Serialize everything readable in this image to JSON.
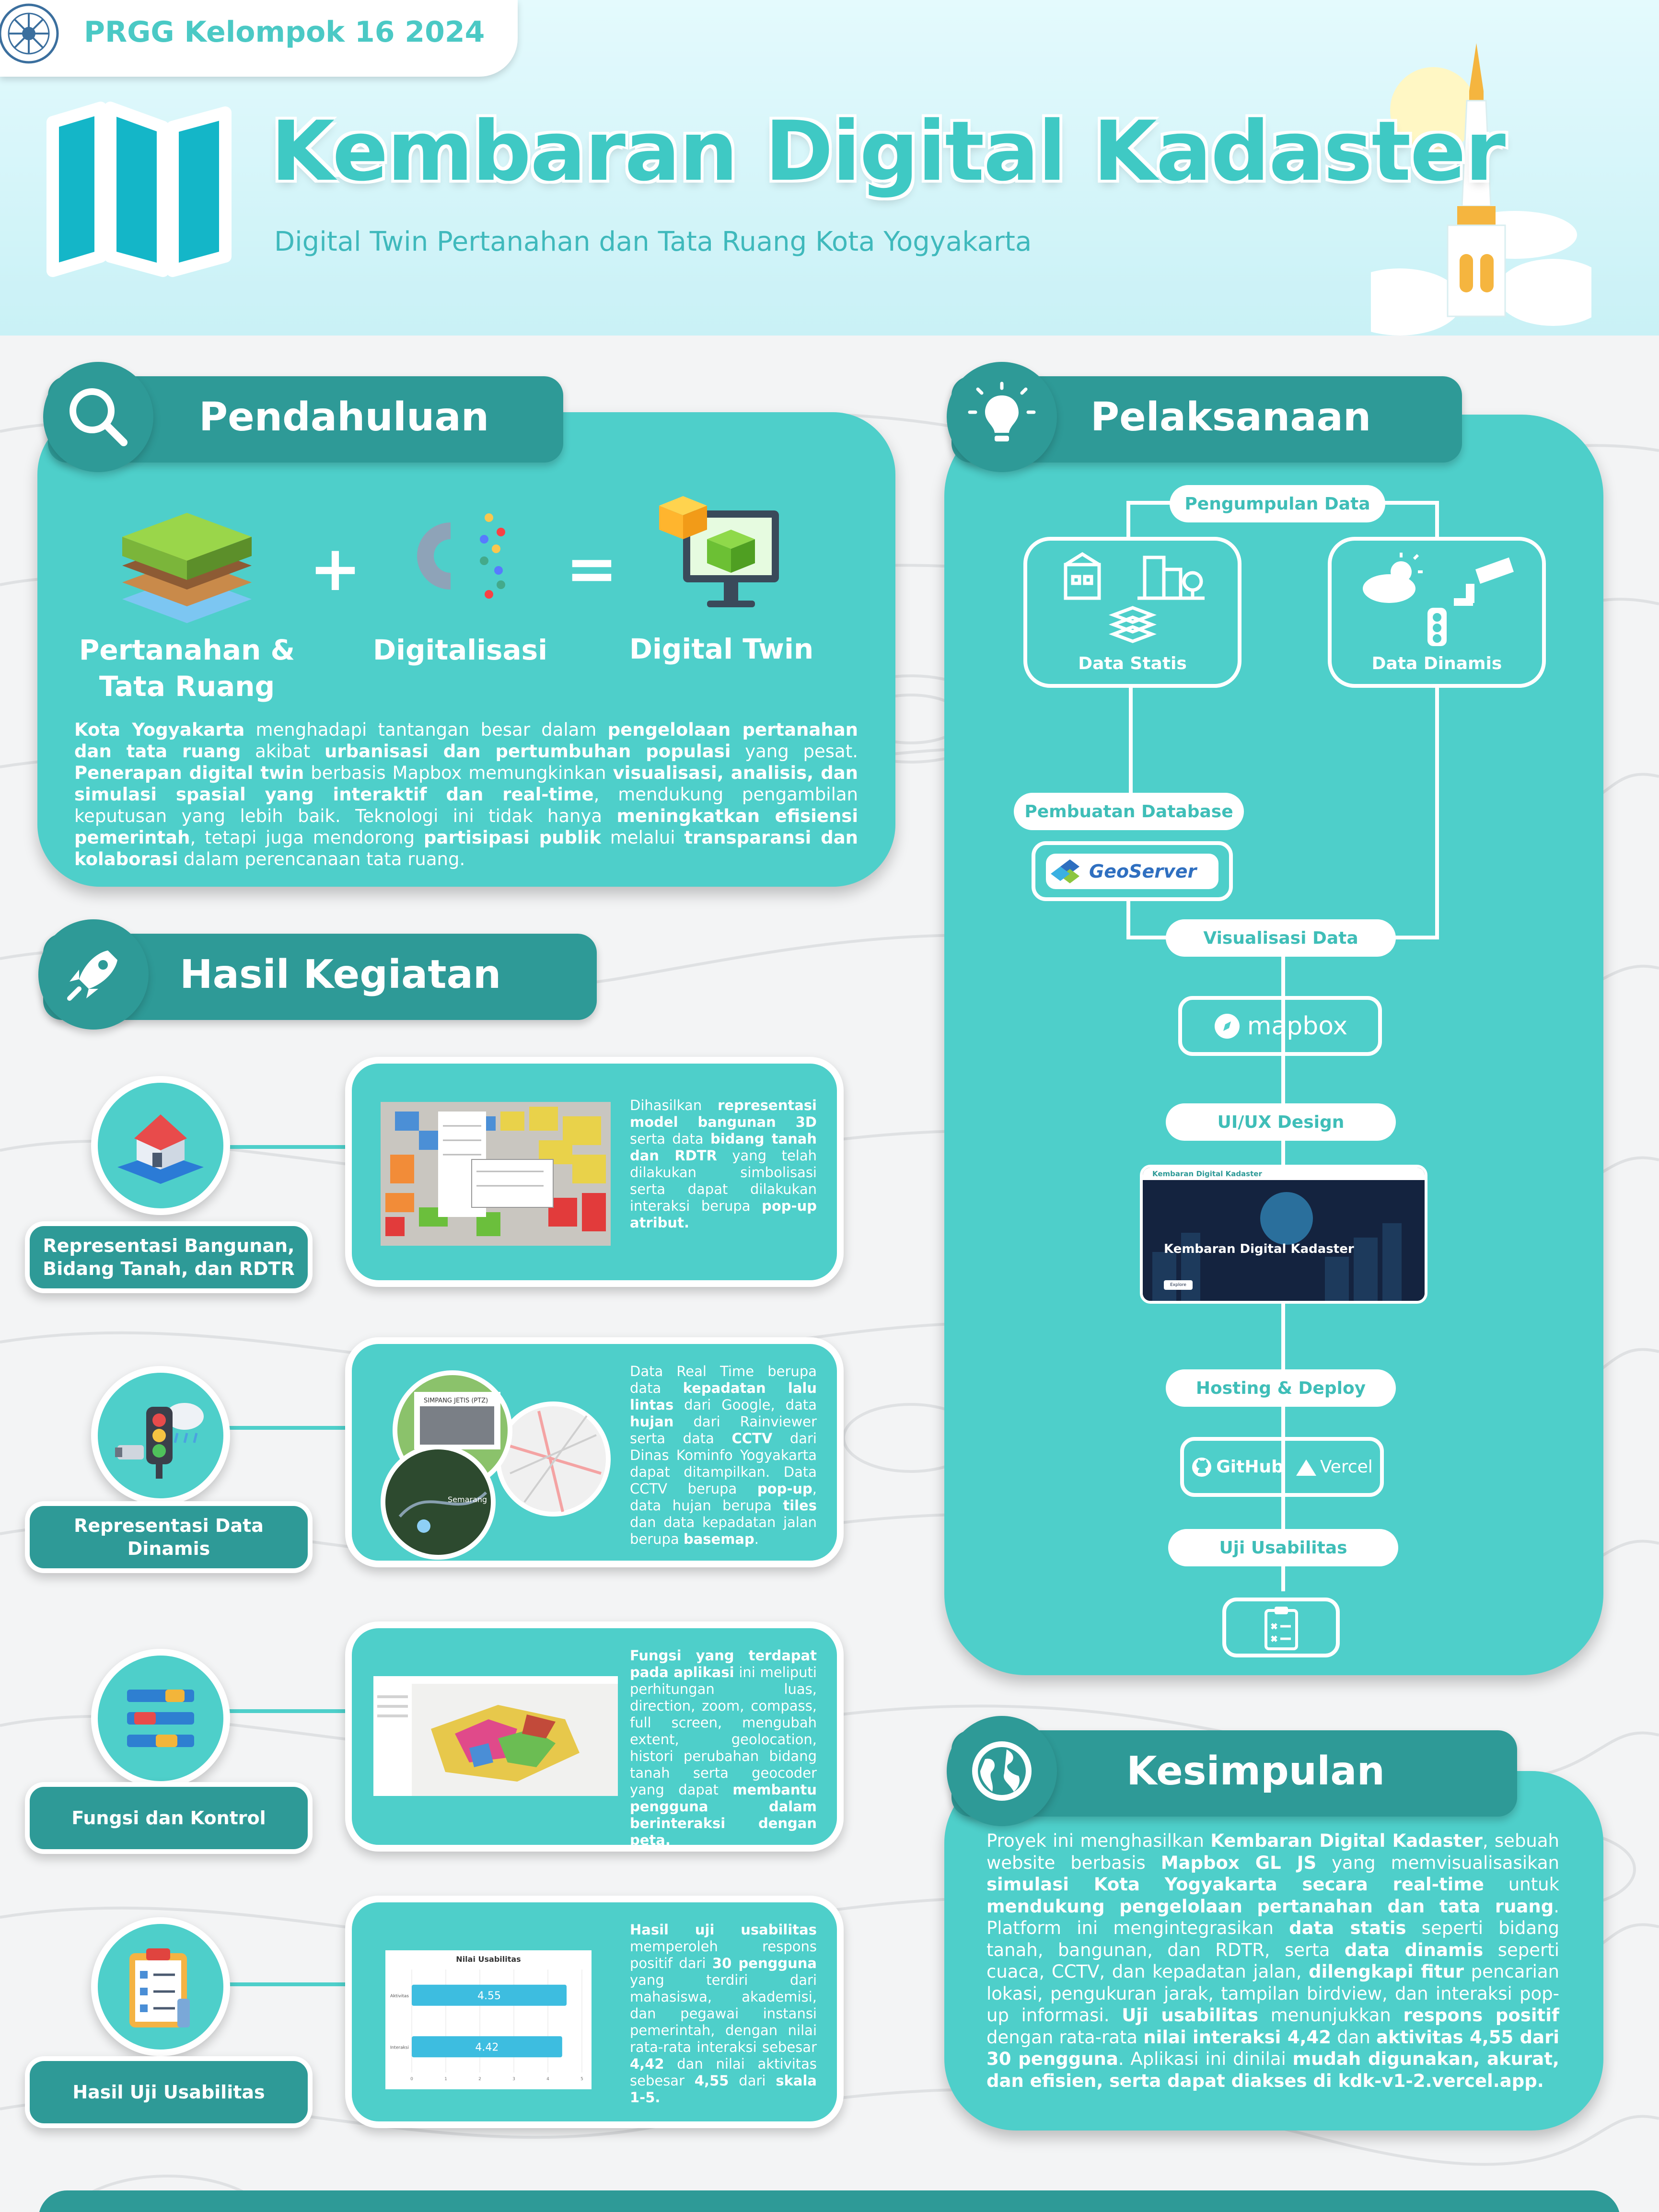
{
  "header": {
    "tag": "PRGG Kelompok 16 2024",
    "title": "Kembaran Digital Kadaster",
    "subtitle": "Digital Twin Pertanahan dan Tata Ruang Kota Yogyakarta"
  },
  "pendahuluan": {
    "heading": "Pendahuluan",
    "icon": "search-icon",
    "items": [
      {
        "label_line1": "Pertanahan &",
        "label_line2": "Tata Ruang",
        "icon": "land-layers-icon"
      },
      {
        "label_line1": "Digitalisasi",
        "icon": "gear-digital-icon"
      },
      {
        "label_line1": "Digital Twin",
        "icon": "monitor-cube-icon"
      }
    ],
    "plus": "+",
    "equals": "=",
    "body_html": "<b>Kota Yogyakarta</b> menghadapi tantangan besar dalam <b>pengelolaan pertanahan dan tata ruang</b> akibat <b>urbanisasi dan pertumbuhan populasi</b> yang pesat. <b>Penerapan digital twin</b> berbasis Mapbox memungkinkan <b>visualisasi, analisis, dan simulasi spasial yang interaktif dan real-time</b>, mendukung pengambilan keputusan yang lebih baik. Teknologi ini tidak hanya <b>meningkatkan efisiensi pemerintah</b>, tetapi juga mendorong <b>partisipasi publik</b> melalui <b>transparansi dan kolaborasi</b> dalam perencanaan tata ruang."
  },
  "hasil": {
    "heading": "Hasil Kegiatan",
    "icon": "rocket-icon",
    "rows": [
      {
        "label": "Representasi Bangunan, Bidang Tanah, dan RDTR",
        "icon": "house-icon",
        "desc_html": "Dihasilkan <b>representasi model bangunan 3D</b> serta data <b>bidang tanah dan RDTR</b> yang telah dilakukan simbolisasi serta dapat dilakukan interaksi berupa <b>pop-up atribut.</b>"
      },
      {
        "label": "Representasi Data Dinamis",
        "icon": "traffic-light-icon",
        "desc_html": "Data Real Time berupa data <b>kepadatan lalu lintas</b> dari Google, data <b>hujan</b> dari Rainviewer serta data <b>CCTV</b> dari Dinas Kominfo Yogyakarta dapat ditampilkan. Data CCTV berupa <b>pop-up</b>, data hujan berupa <b>tiles</b> dan data kepadatan jalan berupa <b>basemap</b>.",
        "map_labels": [
          "SIMPANG JETIS (PTZ)",
          "Semarang"
        ]
      },
      {
        "label": "Fungsi dan Kontrol",
        "icon": "controls-icon",
        "desc_html": "<b>Fungsi yang terdapat pada aplikasi</b> ini meliputi perhitungan luas, direction, zoom, compass, full screen, mengubah extent, geolocation, histori perubahan bidang tanah serta geocoder yang dapat <b>membantu pengguna dalam berinteraksi dengan peta.</b>"
      },
      {
        "label": "Hasil Uji Usabilitas",
        "icon": "clipboard-checklist-icon",
        "desc_html": "<b>Hasil uji usabilitas</b> memperoleh respons positif dari <b>30 pengguna</b> yang terdiri dari mahasiswa, akademisi, dan pegawai instansi pemerintah, dengan nilai rata-rata interaksi sebesar <b>4,42</b> dan nilai aktivitas sebesar <b>4,55</b> dari <b>skala 1-5.</b>"
      }
    ]
  },
  "chart_data": {
    "type": "bar",
    "orientation": "horizontal",
    "title": "Nilai Usabilitas",
    "categories": [
      "Aktivitas",
      "Interaksi"
    ],
    "values": [
      4.55,
      4.42
    ],
    "value_labels": [
      "4.55",
      "4.42"
    ],
    "xlim": [
      0,
      5
    ],
    "x_ticks": [
      "0",
      "1",
      "2",
      "3",
      "4",
      "5"
    ],
    "color": "#3dbde0"
  },
  "pelaksanaan": {
    "heading": "Pelaksanaan",
    "icon": "lightbulb-icon",
    "steps": {
      "pengumpulan": "Pengumpulan Data",
      "statis": "Data Statis",
      "dinamis": "Data Dinamis",
      "database": "Pembuatan Database",
      "geoserver": "GeoServer",
      "visualisasi": "Visualisasi Data",
      "mapbox": "mapbox",
      "uiux": "UI/UX Design",
      "hosting": "Hosting & Deploy",
      "github": "GitHub",
      "vercel": "Vercel",
      "uji": "Uji Usabilitas"
    },
    "website_preview": {
      "nav_title": "Kembaran Digital Kadaster",
      "hero_title": "Kembaran Digital Kadaster",
      "button": "Explore"
    }
  },
  "kesimpulan": {
    "heading": "Kesimpulan",
    "icon": "globe-icon",
    "body_html": "Proyek ini menghasilkan <b>Kembaran Digital Kadaster</b>, sebuah website berbasis <b>Mapbox GL JS</b> yang memvisualisasikan <b>simulasi Kota Yogyakarta secara real-time</b> untuk <b>mendukung pengelolaan pertanahan dan tata ruang</b>. Platform ini mengintegrasikan <b>data statis</b> seperti bidang tanah, bangunan, dan RDTR, serta <b>data dinamis</b> seperti cuaca, CCTV, dan kepadatan jalan, <b>dilengkapi fitur</b> pencarian lokasi, pengukuran jarak, tampilan birdview, dan interaksi pop-up informasi. <b>Uji usabilitas</b> menunjukkan <b>respons positif</b> dengan rata-rata <b>nilai interaksi 4,42</b> dan <b>aktivitas 4,55 dari 30 pengguna</b>. Aplikasi ini dinilai <b>mudah digunakan, akurat, dan efisien, serta dapat diakses di kdk-v1-2.vercel.app.</b>"
  },
  "colors": {
    "panel": "#4ecfca",
    "heading_bg": "#2e9a97",
    "title": "#3fc9c4",
    "accent_blue": "#3dbde0"
  }
}
